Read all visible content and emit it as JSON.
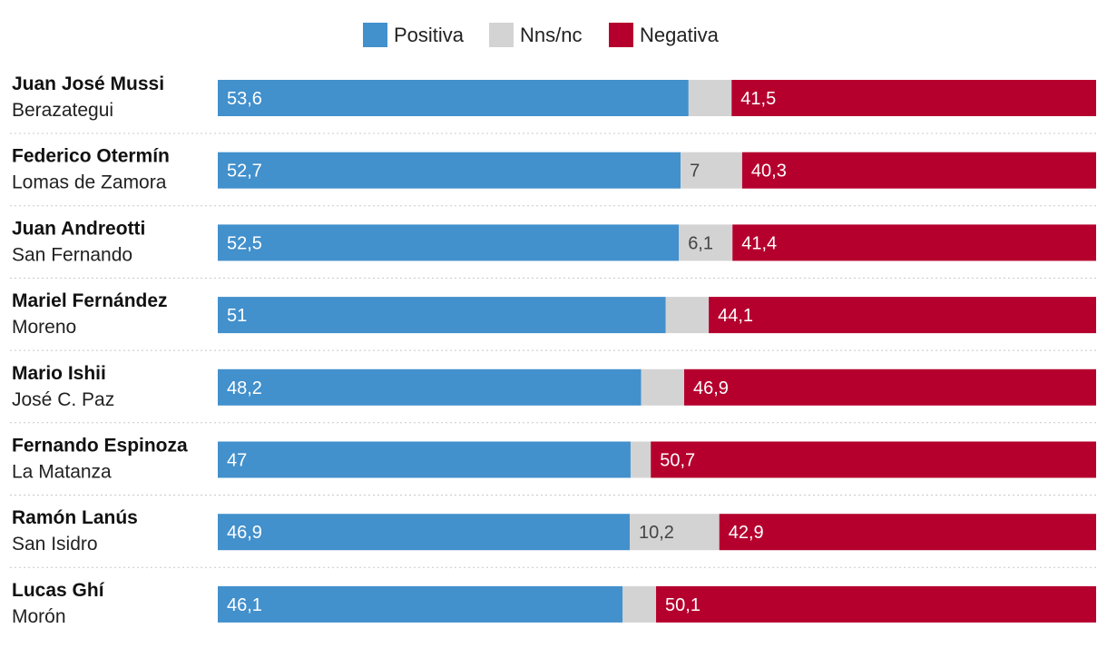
{
  "chart_data": {
    "type": "bar",
    "orientation": "horizontal",
    "stacked": true,
    "legend_position": "top-center",
    "colors": {
      "Positiva": "#4290cc",
      "Nns/nc": "#d3d3d3",
      "Negativa": "#b5002e"
    },
    "series_names": [
      "Positiva",
      "Nns/nc",
      "Negativa"
    ],
    "rows": [
      {
        "name": "Juan José Mussi",
        "place": "Berazategui",
        "positiva": 53.6,
        "nns": 4.9,
        "negativa": 41.5,
        "labels": {
          "positiva": "53,6",
          "nns": "",
          "negativa": "41,5"
        }
      },
      {
        "name": "Federico Otermín",
        "place": "Lomas de Zamora",
        "positiva": 52.7,
        "nns": 7,
        "negativa": 40.3,
        "labels": {
          "positiva": "52,7",
          "nns": "7",
          "negativa": "40,3"
        }
      },
      {
        "name": "Juan Andreotti",
        "place": "San Fernando",
        "positiva": 52.5,
        "nns": 6.1,
        "negativa": 41.4,
        "labels": {
          "positiva": "52,5",
          "nns": "6,1",
          "negativa": "41,4"
        }
      },
      {
        "name": "Mariel Fernández",
        "place": "Moreno",
        "positiva": 51,
        "nns": 4.9,
        "negativa": 44.1,
        "labels": {
          "positiva": "51",
          "nns": "",
          "negativa": "44,1"
        }
      },
      {
        "name": "Mario Ishii",
        "place": "José C. Paz",
        "positiva": 48.2,
        "nns": 4.9,
        "negativa": 46.9,
        "labels": {
          "positiva": "48,2",
          "nns": "",
          "negativa": "46,9"
        }
      },
      {
        "name": "Fernando Espinoza",
        "place": "La Matanza",
        "positiva": 47,
        "nns": 2.3,
        "negativa": 50.7,
        "labels": {
          "positiva": "47",
          "nns": "",
          "negativa": "50,7"
        }
      },
      {
        "name": "Ramón Lanús",
        "place": "San Isidro",
        "positiva": 46.9,
        "nns": 10.2,
        "negativa": 42.9,
        "labels": {
          "positiva": "46,9",
          "nns": "10,2",
          "negativa": "42,9"
        }
      },
      {
        "name": "Lucas Ghí",
        "place": "Morón",
        "positiva": 46.1,
        "nns": 3.8,
        "negativa": 50.1,
        "labels": {
          "positiva": "46,1",
          "nns": "",
          "negativa": "50,1"
        }
      }
    ],
    "xlim": [
      0,
      100
    ]
  }
}
